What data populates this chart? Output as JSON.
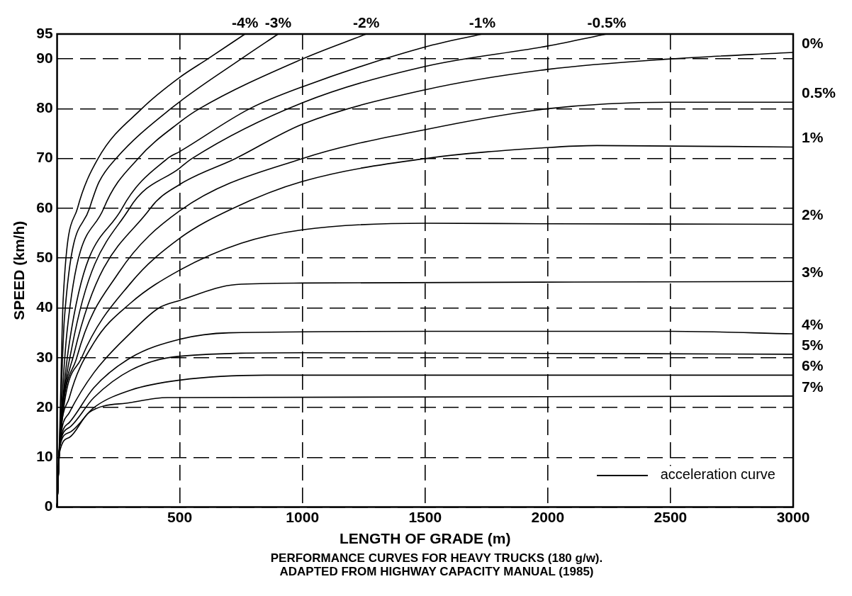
{
  "chart_data": {
    "type": "line",
    "xlabel": "LENGTH OF GRADE (m)",
    "ylabel": "SPEED (km/h)",
    "xlim": [
      0,
      3000
    ],
    "xticks": [
      500,
      1000,
      1500,
      2000,
      2500,
      3000
    ],
    "ylim": [
      0,
      95
    ],
    "yticks": [
      0,
      10,
      20,
      30,
      40,
      50,
      60,
      70,
      80,
      90,
      95
    ],
    "grid": true,
    "marker": "none",
    "annotations": [
      "acceleration curve",
      "PERFORMANCE CURVES FOR HEAVY TRUCKS (180 g/w).",
      "ADAPTED FROM HIGHWAY CAPACITY MANUAL (1985)"
    ],
    "series": [
      {
        "name": "-4%",
        "color": "#000000",
        "x": [
          0,
          10,
          25,
          83,
          167,
          345,
          500,
          614,
          766
        ],
        "values": [
          0,
          14,
          42,
          60,
          70,
          80,
          86.3,
          90,
          95
        ]
      },
      {
        "name": "-3%",
        "color": "#000000",
        "x": [
          0,
          10,
          30,
          132,
          170,
          240,
          463,
          750,
          901
        ],
        "values": [
          0,
          13,
          38,
          60,
          65.2,
          70,
          80,
          90,
          95
        ]
      },
      {
        "name": "-2%",
        "color": "#000000",
        "x": [
          0,
          10,
          40,
          190,
          330,
          500,
          580,
          1000,
          1260
        ],
        "values": [
          0,
          12,
          35,
          60,
          70,
          77.3,
          80,
          90,
          95
        ]
      },
      {
        "name": "-1%",
        "color": "#000000",
        "x": [
          0,
          10,
          50,
          265,
          450,
          500,
          785,
          1000,
          1500,
          1733
        ],
        "values": [
          0,
          12,
          33,
          60,
          70,
          71.4,
          80,
          84.4,
          92.4,
          95
        ]
      },
      {
        "name": "-0.5%",
        "color": "#000000",
        "x": [
          0,
          10,
          60,
          295,
          500,
          550,
          1000,
          1500,
          2000,
          2240
        ],
        "values": [
          0,
          12,
          32,
          60,
          68.1,
          70,
          81.2,
          88.5,
          92.6,
          95
        ]
      },
      {
        "name": "0%",
        "color": "#000000",
        "x": [
          0,
          10,
          70,
          380,
          500,
          727,
          1000,
          1500,
          2000,
          2500,
          3000
        ],
        "values": [
          0,
          12,
          31,
          60,
          64.8,
          70,
          76.9,
          83.8,
          87.9,
          90,
          91.3
        ]
      },
      {
        "name": "0.5%",
        "color": "#000000",
        "x": [
          0,
          10,
          80,
          250,
          500,
          1000,
          1500,
          2000,
          2500,
          3000
        ],
        "values": [
          0,
          12,
          30,
          47,
          59.5,
          70,
          75.8,
          80,
          81.3,
          81.3
        ]
      },
      {
        "name": "1%",
        "color": "#000000",
        "x": [
          0,
          10,
          100,
          300,
          500,
          717,
          1000,
          1500,
          2000,
          2200,
          3000
        ],
        "values": [
          0,
          12,
          30,
          45,
          54,
          60,
          65.4,
          70,
          72.2,
          72.6,
          72.3
        ]
      },
      {
        "name": "2%",
        "color": "#000000",
        "x": [
          0,
          10,
          50,
          150,
          300,
          500,
          750,
          1000,
          1500,
          2000,
          3000
        ],
        "values": [
          0,
          12,
          22,
          33,
          41,
          47.6,
          53,
          55.7,
          57,
          56.9,
          56.8
        ]
      },
      {
        "name": "3%",
        "color": "#000000",
        "x": [
          0,
          10,
          50,
          150,
          300,
          415,
          500,
          730,
          1000,
          3000
        ],
        "values": [
          0,
          12,
          19,
          27,
          35,
          40,
          41.5,
          44.7,
          45,
          45.3
        ]
      },
      {
        "name": "4%",
        "color": "#000000",
        "x": [
          0,
          10,
          50,
          150,
          300,
          500,
          700,
          1500,
          2500,
          3000
        ],
        "values": [
          0,
          12,
          17,
          24,
          30,
          33.7,
          35,
          35.3,
          35.3,
          34.8
        ]
      },
      {
        "name": "5%",
        "color": "#000000",
        "x": [
          0,
          10,
          50,
          150,
          300,
          500,
          1000,
          3000
        ],
        "values": [
          0,
          12,
          16,
          22,
          27.5,
          30.3,
          31,
          30.7
        ]
      },
      {
        "name": "6%",
        "color": "#000000",
        "x": [
          0,
          10,
          50,
          150,
          300,
          500,
          850,
          3000
        ],
        "values": [
          0,
          12,
          15,
          20,
          23.5,
          25.5,
          26.5,
          26.5
        ]
      },
      {
        "name": "7%",
        "color": "#000000",
        "x": [
          0,
          10,
          50,
          130,
          300,
          450,
          3000
        ],
        "values": [
          0,
          11,
          14,
          19,
          21,
          22,
          22.3
        ]
      }
    ]
  }
}
